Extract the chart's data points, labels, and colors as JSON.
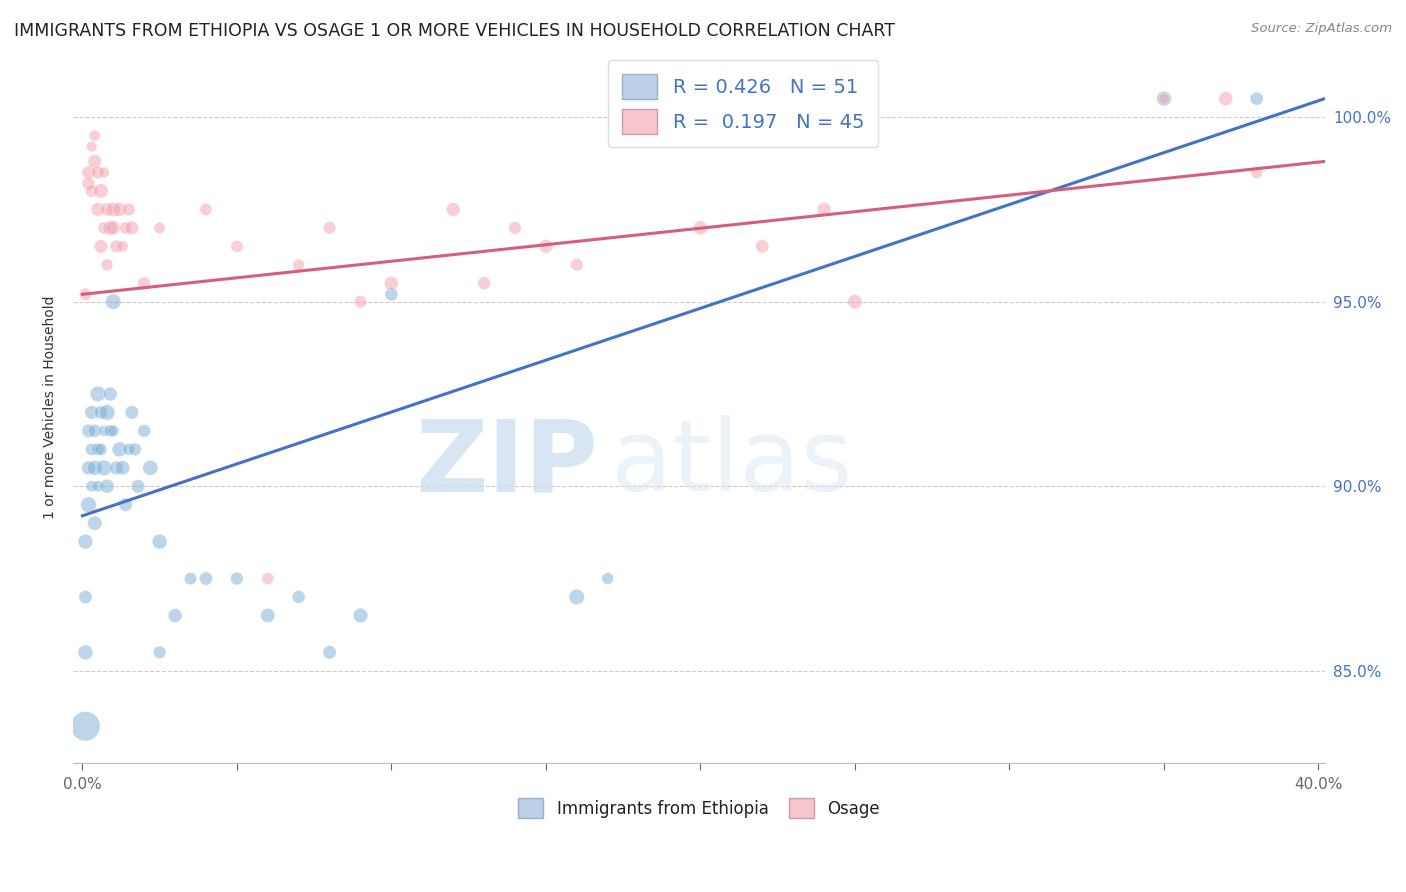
{
  "title": "IMMIGRANTS FROM ETHIOPIA VS OSAGE 1 OR MORE VEHICLES IN HOUSEHOLD CORRELATION CHART",
  "source": "Source: ZipAtlas.com",
  "ylabel": "1 or more Vehicles in Household",
  "xlabel_blue": "Immigrants from Ethiopia",
  "xlabel_pink": "Osage",
  "watermark_zip": "ZIP",
  "watermark_atlas": "atlas",
  "r_blue": 0.426,
  "n_blue": 51,
  "r_pink": 0.197,
  "n_pink": 45,
  "xlim": [
    -0.003,
    0.402
  ],
  "ylim": [
    82.5,
    101.8
  ],
  "yticks": [
    85.0,
    90.0,
    95.0,
    100.0
  ],
  "xtick_left_label": "0.0%",
  "xtick_right_label": "40.0%",
  "ytick_labels": [
    "85.0%",
    "90.0%",
    "95.0%",
    "100.0%"
  ],
  "background_color": "#ffffff",
  "blue_color": "#7aadd4",
  "pink_color": "#f4a0b0",
  "blue_line_color": "#4472c4",
  "pink_line_color": "#d45f7a",
  "legend_blue_fill": "#bdd0e8",
  "legend_pink_fill": "#f7c5ce",
  "grid_color": "#cccccc",
  "blue_scatter": [
    [
      0.001,
      83.5
    ],
    [
      0.001,
      85.5
    ],
    [
      0.001,
      87.0
    ],
    [
      0.001,
      88.5
    ],
    [
      0.002,
      89.5
    ],
    [
      0.002,
      90.5
    ],
    [
      0.002,
      91.5
    ],
    [
      0.003,
      90.0
    ],
    [
      0.003,
      91.0
    ],
    [
      0.003,
      92.0
    ],
    [
      0.004,
      89.0
    ],
    [
      0.004,
      90.5
    ],
    [
      0.004,
      91.5
    ],
    [
      0.005,
      90.0
    ],
    [
      0.005,
      91.0
    ],
    [
      0.005,
      92.5
    ],
    [
      0.006,
      91.0
    ],
    [
      0.006,
      92.0
    ],
    [
      0.007,
      90.5
    ],
    [
      0.007,
      91.5
    ],
    [
      0.008,
      90.0
    ],
    [
      0.008,
      92.0
    ],
    [
      0.009,
      91.5
    ],
    [
      0.009,
      92.5
    ],
    [
      0.01,
      95.0
    ],
    [
      0.01,
      91.5
    ],
    [
      0.011,
      90.5
    ],
    [
      0.012,
      91.0
    ],
    [
      0.013,
      90.5
    ],
    [
      0.014,
      89.5
    ],
    [
      0.015,
      91.0
    ],
    [
      0.016,
      92.0
    ],
    [
      0.017,
      91.0
    ],
    [
      0.018,
      90.0
    ],
    [
      0.02,
      91.5
    ],
    [
      0.022,
      90.5
    ],
    [
      0.025,
      88.5
    ],
    [
      0.025,
      85.5
    ],
    [
      0.03,
      86.5
    ],
    [
      0.035,
      87.5
    ],
    [
      0.04,
      87.5
    ],
    [
      0.05,
      87.5
    ],
    [
      0.06,
      86.5
    ],
    [
      0.07,
      87.0
    ],
    [
      0.08,
      85.5
    ],
    [
      0.09,
      86.5
    ],
    [
      0.1,
      95.2
    ],
    [
      0.16,
      87.0
    ],
    [
      0.17,
      87.5
    ],
    [
      0.35,
      100.5
    ],
    [
      0.38,
      100.5
    ]
  ],
  "pink_scatter": [
    [
      0.001,
      95.2
    ],
    [
      0.002,
      98.5
    ],
    [
      0.002,
      98.2
    ],
    [
      0.003,
      98.0
    ],
    [
      0.003,
      99.2
    ],
    [
      0.004,
      99.5
    ],
    [
      0.004,
      98.8
    ],
    [
      0.005,
      98.5
    ],
    [
      0.005,
      97.5
    ],
    [
      0.006,
      98.0
    ],
    [
      0.006,
      96.5
    ],
    [
      0.007,
      98.5
    ],
    [
      0.007,
      97.0
    ],
    [
      0.008,
      97.5
    ],
    [
      0.008,
      96.0
    ],
    [
      0.009,
      97.0
    ],
    [
      0.01,
      97.5
    ],
    [
      0.01,
      97.0
    ],
    [
      0.011,
      96.5
    ],
    [
      0.012,
      97.5
    ],
    [
      0.013,
      96.5
    ],
    [
      0.014,
      97.0
    ],
    [
      0.015,
      97.5
    ],
    [
      0.016,
      97.0
    ],
    [
      0.02,
      95.5
    ],
    [
      0.025,
      97.0
    ],
    [
      0.04,
      97.5
    ],
    [
      0.05,
      96.5
    ],
    [
      0.06,
      87.5
    ],
    [
      0.07,
      96.0
    ],
    [
      0.08,
      97.0
    ],
    [
      0.09,
      95.0
    ],
    [
      0.1,
      95.5
    ],
    [
      0.12,
      97.5
    ],
    [
      0.13,
      95.5
    ],
    [
      0.14,
      97.0
    ],
    [
      0.15,
      96.5
    ],
    [
      0.2,
      97.0
    ],
    [
      0.22,
      96.5
    ],
    [
      0.24,
      97.5
    ],
    [
      0.25,
      95.0
    ],
    [
      0.35,
      100.5
    ],
    [
      0.37,
      100.5
    ],
    [
      0.38,
      98.5
    ],
    [
      0.16,
      96.0
    ]
  ],
  "blue_line_x": [
    0.0,
    0.402
  ],
  "blue_line_y": [
    89.2,
    100.5
  ],
  "pink_line_x": [
    0.0,
    0.402
  ],
  "pink_line_y": [
    95.2,
    98.8
  ]
}
